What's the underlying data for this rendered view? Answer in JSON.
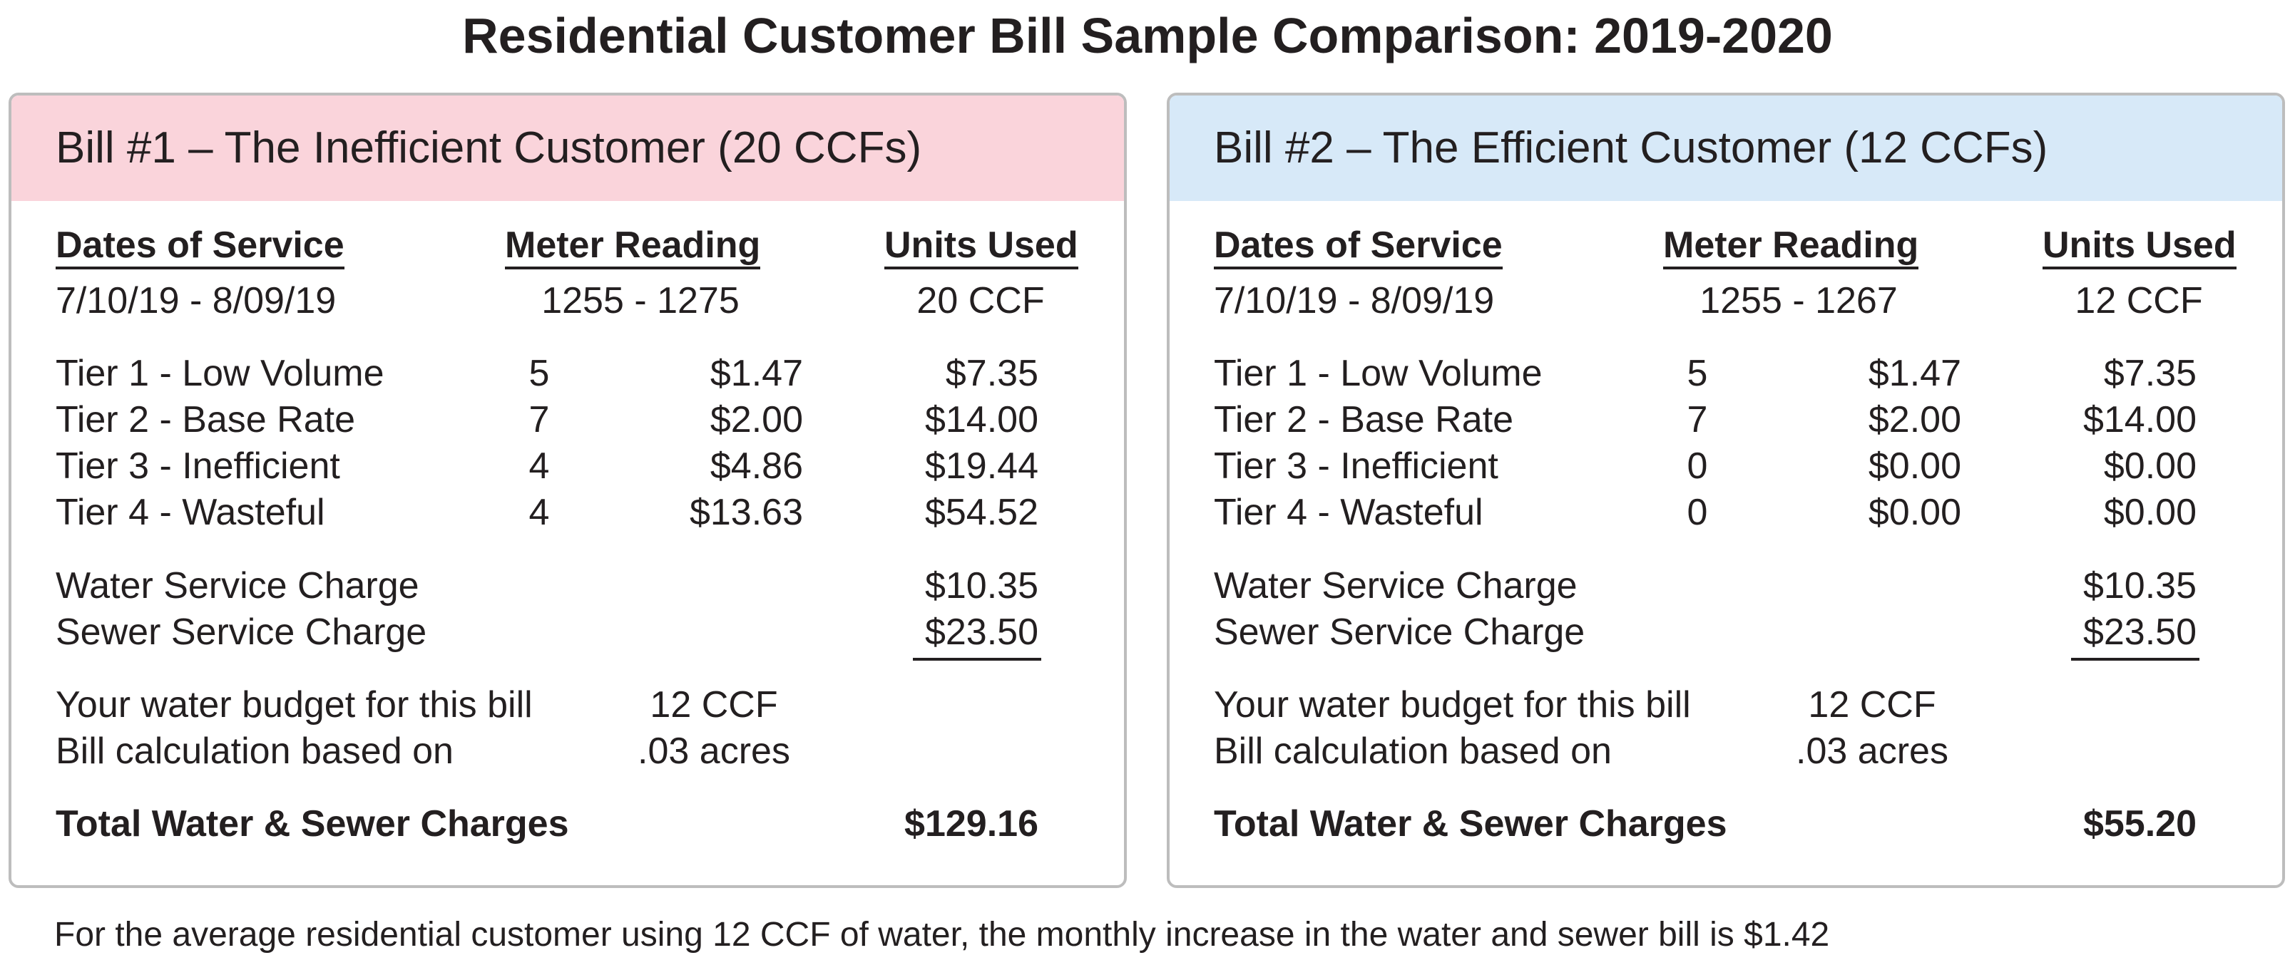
{
  "title": "Residential Customer Bill Sample Comparison: 2019-2020",
  "bills": [
    {
      "header": "Bill #1 – The Inefficient Customer (20 CCFs)",
      "col_dates": "Dates of Service",
      "col_meter": "Meter Reading",
      "col_units": "Units Used",
      "dates": "7/10/19 - 8/09/19",
      "meter": "1255 - 1275",
      "units": "20 CCF",
      "tiers": [
        {
          "label": "Tier 1 - Low Volume",
          "qty": "5",
          "rate": "$1.47",
          "amount": "$7.35"
        },
        {
          "label": "Tier 2 - Base Rate",
          "qty": "7",
          "rate": "$2.00",
          "amount": "$14.00"
        },
        {
          "label": "Tier 3 - Inefficient",
          "qty": "4",
          "rate": "$4.86",
          "amount": "$19.44"
        },
        {
          "label": "Tier 4 - Wasteful",
          "qty": "4",
          "rate": "$13.63",
          "amount": "$54.52"
        }
      ],
      "water_service_label": "Water Service Charge",
      "water_service_amount": "$10.35",
      "sewer_service_label": "Sewer Service Charge",
      "sewer_service_amount": "$23.50",
      "budget_label": "Your water budget for this bill",
      "budget_value": "12 CCF",
      "basis_label": "Bill calculation based on",
      "basis_value": ".03 acres",
      "total_label": "Total Water & Sewer Charges",
      "total_amount": "$129.16"
    },
    {
      "header": "Bill #2 – The Efficient Customer (12 CCFs)",
      "col_dates": "Dates of Service",
      "col_meter": "Meter Reading",
      "col_units": "Units Used",
      "dates": "7/10/19 - 8/09/19",
      "meter": "1255 - 1267",
      "units": "12 CCF",
      "tiers": [
        {
          "label": "Tier 1 - Low Volume",
          "qty": "5",
          "rate": "$1.47",
          "amount": "$7.35"
        },
        {
          "label": "Tier 2 - Base Rate",
          "qty": "7",
          "rate": "$2.00",
          "amount": "$14.00"
        },
        {
          "label": "Tier 3 - Inefficient",
          "qty": "0",
          "rate": "$0.00",
          "amount": "$0.00"
        },
        {
          "label": "Tier 4 - Wasteful",
          "qty": "0",
          "rate": "$0.00",
          "amount": "$0.00"
        }
      ],
      "water_service_label": "Water Service Charge",
      "water_service_amount": "$10.35",
      "sewer_service_label": "Sewer Service Charge",
      "sewer_service_amount": "$23.50",
      "budget_label": "Your water budget for this bill",
      "budget_value": "12 CCF",
      "basis_label": "Bill calculation based on",
      "basis_value": ".03 acres",
      "total_label": "Total Water & Sewer Charges",
      "total_amount": "$55.20"
    }
  ],
  "footer_note": "For the average residential customer using 12 CCF of water, the monthly increase in the water and sewer bill is $1.42",
  "colors": {
    "bill1_header_bg": "#fad4db",
    "bill2_header_bg": "#d7e9f8",
    "card_border": "#bdbdbd",
    "text": "#231f20"
  }
}
